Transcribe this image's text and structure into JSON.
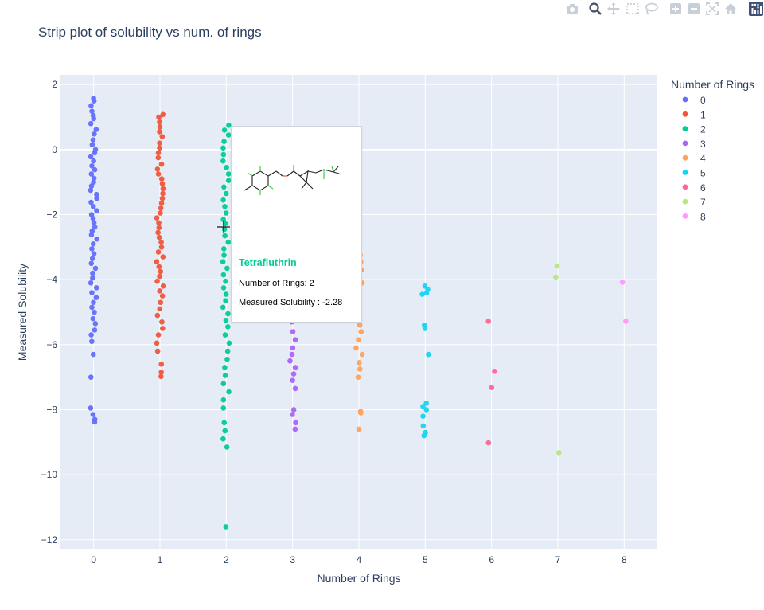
{
  "chart_data": {
    "type": "scatter",
    "title": "Strip plot of solubility vs num. of rings",
    "xlabel": "Number of Rings",
    "ylabel": "Measured Solubility",
    "xlim": [
      -0.5,
      8.5
    ],
    "ylim": [
      -12.3,
      2.3
    ],
    "x_ticks": [
      0,
      1,
      2,
      3,
      4,
      5,
      6,
      7,
      8
    ],
    "y_ticks": [
      2,
      0,
      -2,
      -4,
      -6,
      -8,
      -10,
      -12
    ],
    "y_tick_labels": [
      "2",
      "0",
      "−2",
      "−4",
      "−6",
      "−8",
      "−10",
      "−12"
    ],
    "grid": true,
    "legend": {
      "title": "Number of Rings",
      "placement": "right"
    },
    "series": [
      {
        "name": "0",
        "color": "#636efa",
        "x": 0,
        "values": [
          1.58,
          1.5,
          1.35,
          1.18,
          1.05,
          0.95,
          0.8,
          0.62,
          0.48,
          0.3,
          0.15,
          0.0,
          -0.1,
          -0.22,
          -0.35,
          -0.5,
          -0.62,
          -0.75,
          -0.88,
          -1.0,
          -1.12,
          -1.25,
          -1.38,
          -1.5,
          -1.62,
          -1.75,
          -1.88,
          -2.0,
          -2.12,
          -2.25,
          -2.38,
          -2.5,
          -2.62,
          -2.75,
          -2.9,
          -3.05,
          -3.2,
          -3.35,
          -3.5,
          -3.65,
          -3.8,
          -3.95,
          -4.1,
          -4.25,
          -4.4,
          -4.55,
          -4.7,
          -4.85,
          -5.0,
          -5.2,
          -5.35,
          -5.55,
          -5.7,
          -5.9,
          -6.3,
          -7.0,
          -7.95,
          -8.15,
          -8.3,
          -8.38
        ]
      },
      {
        "name": "1",
        "color": "#ef553b",
        "x": 1,
        "values": [
          1.08,
          1.0,
          0.85,
          0.7,
          0.55,
          0.4,
          0.2,
          0.05,
          -0.1,
          -0.25,
          -0.45,
          -0.6,
          -0.75,
          -0.9,
          -1.05,
          -1.2,
          -1.35,
          -1.5,
          -1.65,
          -1.8,
          -1.95,
          -2.1,
          -2.25,
          -2.4,
          -2.55,
          -2.7,
          -2.85,
          -3.0,
          -3.15,
          -3.3,
          -3.45,
          -3.6,
          -3.75,
          -3.9,
          -4.05,
          -4.2,
          -4.35,
          -4.5,
          -4.7,
          -4.9,
          -5.1,
          -5.3,
          -5.5,
          -5.7,
          -5.95,
          -6.2,
          -6.6,
          -6.85,
          -6.98
        ]
      },
      {
        "name": "2",
        "color": "#00cc96",
        "x": 2,
        "values": [
          0.75,
          0.6,
          0.45,
          0.25,
          0.05,
          -0.15,
          -0.35,
          -0.55,
          -0.75,
          -0.95,
          -1.15,
          -1.35,
          -1.55,
          -1.75,
          -1.95,
          -2.15,
          -2.28,
          -2.45,
          -2.65,
          -2.85,
          -3.05,
          -3.25,
          -3.45,
          -3.65,
          -3.85,
          -4.05,
          -4.25,
          -4.45,
          -4.65,
          -4.85,
          -5.05,
          -5.25,
          -5.45,
          -5.7,
          -5.95,
          -6.2,
          -6.45,
          -6.7,
          -6.95,
          -7.2,
          -7.45,
          -7.7,
          -7.95,
          -8.4,
          -8.65,
          -8.9,
          -9.15,
          -11.6
        ]
      },
      {
        "name": "3",
        "color": "#ab63fa",
        "x": 3,
        "values": [
          -5.3,
          -5.6,
          -5.85,
          -6.1,
          -6.3,
          -6.5,
          -6.7,
          -6.9,
          -7.1,
          -7.35,
          -8.0,
          -8.15,
          -8.4,
          -8.6
        ]
      },
      {
        "name": "4",
        "color": "#ffa15a",
        "x": 4,
        "values": [
          -2.85,
          -3.05,
          -3.25,
          -3.45,
          -3.7,
          -3.9,
          -4.1,
          -5.4,
          -5.6,
          -5.85,
          -6.1,
          -6.3,
          -6.55,
          -6.75,
          -7.0,
          -8.05,
          -8.1,
          -8.6
        ]
      },
      {
        "name": "5",
        "color": "#19d3f3",
        "x": 5,
        "values": [
          -4.2,
          -4.3,
          -4.4,
          -4.45,
          -5.4,
          -5.5,
          -6.3,
          -7.8,
          -7.9,
          -8.0,
          -8.2,
          -8.5,
          -8.7,
          -8.8
        ]
      },
      {
        "name": "6",
        "color": "#ff6692",
        "x": 6,
        "values": [
          -5.28,
          -6.82,
          -7.32,
          -9.02
        ]
      },
      {
        "name": "7",
        "color": "#b6e880",
        "x": 7,
        "values": [
          -3.58,
          -3.92,
          -9.32
        ]
      },
      {
        "name": "8",
        "color": "#ff97ff",
        "x": 8,
        "values": [
          -4.08,
          -5.28
        ]
      }
    ]
  },
  "hover": {
    "name": "Tetrafluthrin",
    "rings_line": "Number of Rings: 2",
    "solubility_line": "Measured Solubility : -2.28",
    "rings": 2,
    "solubility": -2.28
  },
  "modebar": {
    "buttons": [
      "camera-icon",
      "zoom-icon",
      "pan-icon",
      "box-select-icon",
      "lasso-select-icon",
      "zoom-in-icon",
      "zoom-out-icon",
      "autoscale-icon",
      "reset-axes-icon",
      "plotly-logo-icon"
    ]
  }
}
